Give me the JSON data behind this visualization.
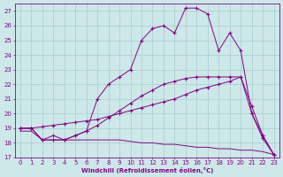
{
  "xlabel": "Windchill (Refroidissement éolien,°C)",
  "bg_color": "#cce8e8",
  "grid_color": "#aacccc",
  "line_color": "#880088",
  "xlim": [
    -0.5,
    23.5
  ],
  "ylim": [
    17,
    27.5
  ],
  "yticks": [
    17,
    18,
    19,
    20,
    21,
    22,
    23,
    24,
    25,
    26,
    27
  ],
  "xticks": [
    0,
    1,
    2,
    3,
    4,
    5,
    6,
    7,
    8,
    9,
    10,
    11,
    12,
    13,
    14,
    15,
    16,
    17,
    18,
    19,
    20,
    21,
    22,
    23
  ],
  "series": [
    {
      "x": [
        0,
        1,
        2,
        3,
        4,
        5,
        6,
        7,
        8,
        9,
        10,
        11,
        12,
        13,
        14,
        15,
        16,
        17,
        18,
        19,
        20,
        21,
        22,
        23
      ],
      "y": [
        18.8,
        18.8,
        18.2,
        18.2,
        18.2,
        18.2,
        18.2,
        18.2,
        18.2,
        18.2,
        18.1,
        18.0,
        18.0,
        17.9,
        17.9,
        17.8,
        17.7,
        17.7,
        17.6,
        17.6,
        17.5,
        17.5,
        17.4,
        17.2
      ],
      "marker": false
    },
    {
      "x": [
        0,
        1,
        2,
        3,
        4,
        5,
        6,
        7,
        8,
        9,
        10,
        11,
        12,
        13,
        14,
        15,
        16,
        17,
        18,
        19,
        20,
        21,
        22,
        23
      ],
      "y": [
        19.0,
        19.0,
        19.1,
        19.2,
        19.3,
        19.4,
        19.5,
        19.6,
        19.8,
        20.0,
        20.2,
        20.4,
        20.6,
        20.8,
        21.0,
        21.3,
        21.6,
        21.8,
        22.0,
        22.2,
        22.5,
        20.5,
        18.5,
        17.2
      ],
      "marker": true
    },
    {
      "x": [
        0,
        1,
        2,
        3,
        4,
        5,
        6,
        7,
        8,
        9,
        10,
        11,
        12,
        13,
        14,
        15,
        16,
        17,
        18,
        19,
        20,
        21,
        22,
        23
      ],
      "y": [
        19.0,
        19.0,
        18.2,
        18.2,
        18.2,
        18.5,
        18.8,
        19.2,
        19.7,
        20.2,
        20.7,
        21.2,
        21.6,
        22.0,
        22.2,
        22.4,
        22.5,
        22.5,
        22.5,
        22.5,
        22.5,
        20.0,
        18.3,
        17.2
      ],
      "marker": true
    },
    {
      "x": [
        0,
        1,
        2,
        3,
        4,
        5,
        6,
        7,
        8,
        9,
        10,
        11,
        12,
        13,
        14,
        15,
        16,
        17,
        18,
        19,
        20,
        21,
        22,
        23
      ],
      "y": [
        19.0,
        19.0,
        18.2,
        18.5,
        18.2,
        18.5,
        18.8,
        21.0,
        22.0,
        22.5,
        23.0,
        25.0,
        25.8,
        26.0,
        25.5,
        27.2,
        27.2,
        26.8,
        24.3,
        25.5,
        24.3,
        20.0,
        18.5,
        17.2
      ],
      "marker": true
    }
  ]
}
